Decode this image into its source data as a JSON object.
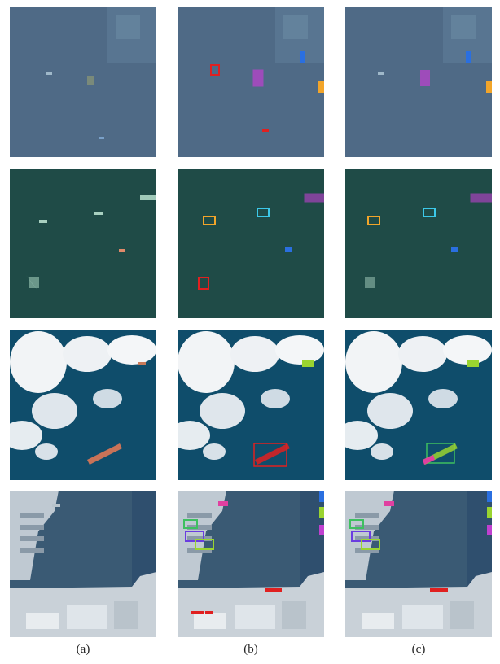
{
  "figure": {
    "columns": [
      {
        "caption": "(a)"
      },
      {
        "caption": "(b)"
      },
      {
        "caption": "(c)"
      }
    ],
    "rows": [
      {
        "scene": "open-sea-small-ships",
        "sea_color": "#4f6a86"
      },
      {
        "scene": "dark-green-sea-ships",
        "sea_color": "#1f4b47"
      },
      {
        "scene": "clouds-over-sea-cargo-ship",
        "sea_color": "#0f4d6b"
      },
      {
        "scene": "harbor-with-docked-ships",
        "sea_color": "#3a5a74"
      }
    ],
    "box_colors": {
      "red": "#e02020",
      "magenta": "#c040d0",
      "blue": "#2a6fe0",
      "orange": "#f2a52a",
      "cyan": "#3cc8e8",
      "lime": "#9ad430",
      "green": "#3ec060",
      "violet": "#6a3ce0",
      "pink": "#e040a0"
    }
  }
}
